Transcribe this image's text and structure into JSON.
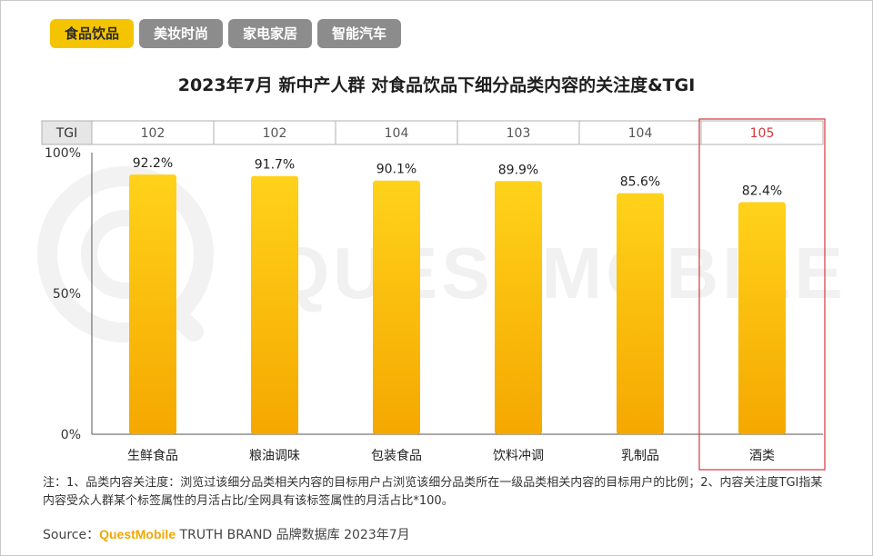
{
  "tabs": [
    {
      "label": "食品饮品",
      "active": true
    },
    {
      "label": "美妆时尚",
      "active": false
    },
    {
      "label": "家电家居",
      "active": false
    },
    {
      "label": "智能汽车",
      "active": false
    }
  ],
  "colors": {
    "accent": "#f5c400",
    "bar_top": "#ffd21a",
    "bar_bottom": "#f5a800",
    "highlight": "#d9363e",
    "tab_inactive": "#8c8c8c"
  },
  "chart_data": {
    "type": "bar",
    "title": "2023年7月 新中产人群 对食品饮品下细分品类内容的关注度&TGI",
    "categories": [
      "生鲜食品",
      "粮油调味",
      "包装食品",
      "饮料冲调",
      "乳制品",
      "酒类"
    ],
    "values": [
      92.2,
      91.7,
      90.1,
      89.9,
      85.6,
      82.4
    ],
    "value_labels": [
      "92.2%",
      "91.7%",
      "90.1%",
      "89.9%",
      "85.6%",
      "82.4%"
    ],
    "ylim": [
      0,
      100
    ],
    "yticks": [
      "0%",
      "50%",
      "100%"
    ],
    "tgi_header": "TGI",
    "tgi": [
      "102",
      "102",
      "104",
      "103",
      "104",
      "105"
    ],
    "highlight_category": "酒类",
    "grid": false,
    "legend": "none"
  },
  "watermark": "QUESTMOBILE",
  "notes": "注：1、品类内容关注度：浏览过该细分品类相关内容的目标用户占浏览该细分品类所在一级品类相关内容的目标用户的比例；2、内容关注度TGI指某内容受众人群某个标签属性的月活占比/全网具有该标签属性的月活占比*100。",
  "source": {
    "prefix": "Source：",
    "brand": "QuestMobile",
    "rest": " TRUTH BRAND 品牌数据库 2023年7月"
  }
}
